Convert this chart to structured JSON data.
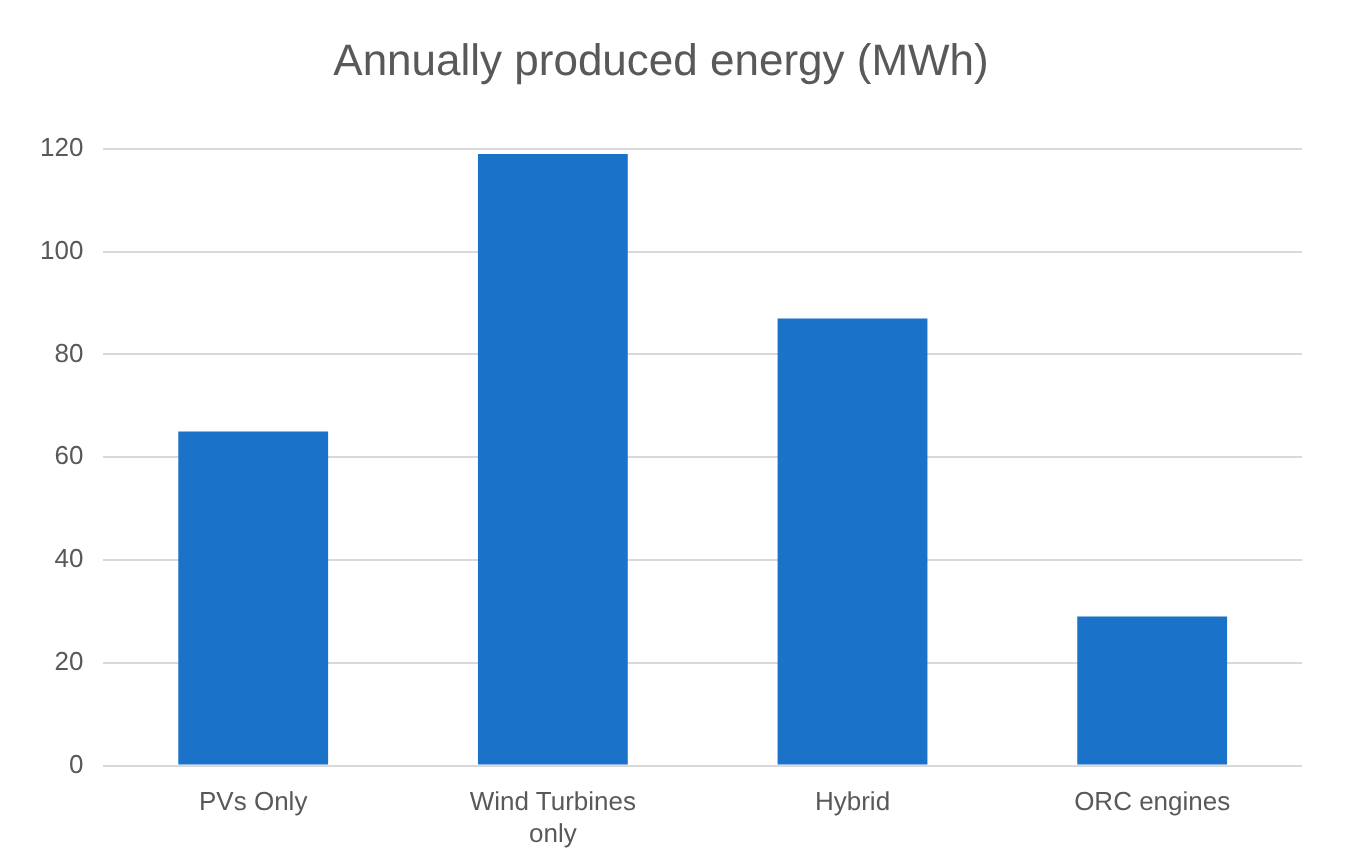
{
  "chart_data": {
    "type": "bar",
    "title": "Annually produced energy (MWh)",
    "categories": [
      "PVs Only",
      "Wind Turbines only",
      "Hybrid",
      "ORC engines"
    ],
    "values": [
      65,
      119,
      87,
      29
    ],
    "color": "#1a73c9",
    "ylim": [
      0,
      120
    ],
    "yticks": [
      0,
      20,
      40,
      60,
      80,
      100,
      120
    ],
    "grid": "y",
    "legend": false
  }
}
